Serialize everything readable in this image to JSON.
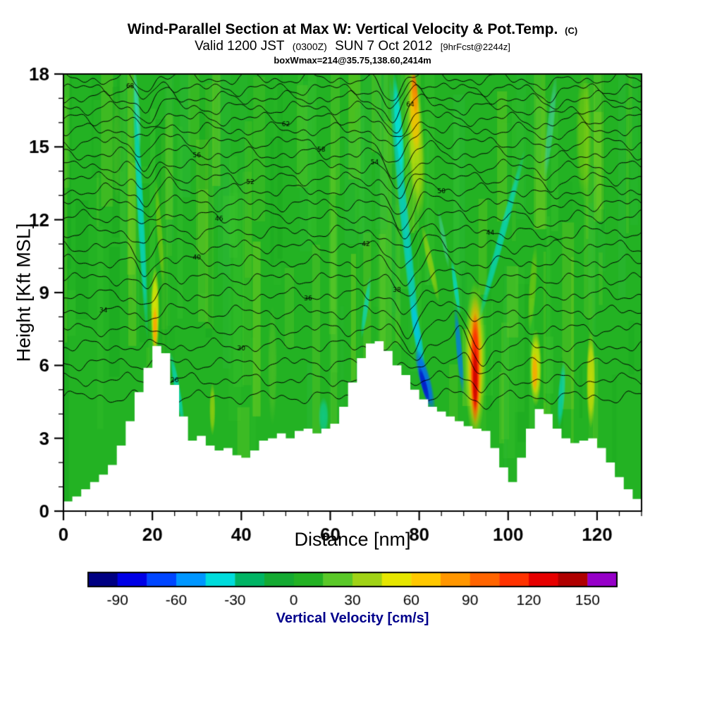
{
  "header": {
    "title_main": "Wind-Parallel Section at Max W: Vertical Velocity & Pot.Temp.",
    "title_unit": "(C)",
    "valid_line": {
      "p1": "Valid 1200 JST",
      "p2": "(0300Z)",
      "p3": "SUN 7 Oct 2012",
      "p4": "[9hrFcst@2244z]"
    },
    "info_line": "boxWmax=214@35.75,138.60,2414m"
  },
  "chart_data": {
    "type": "heatmap",
    "title": "Wind-Parallel Section at Max W: Vertical Velocity & Pot.Temp. (C)",
    "xlabel": "Distance [nm]",
    "ylabel": "Height [Kft MSL]",
    "xlim": [
      0,
      130
    ],
    "ylim": [
      0,
      18
    ],
    "xticks_major": [
      0,
      20,
      40,
      60,
      80,
      100,
      120
    ],
    "xtick_minor_step": 5,
    "yticks_major": [
      0,
      3,
      6,
      9,
      12,
      15,
      18
    ],
    "ytick_minor_step": 1,
    "field": {
      "base_color": "#23B223",
      "mottle_colors": [
        "#3DC42D",
        "#6FCE28",
        "#15A31E",
        "#2DBA3C",
        "#8CD41E"
      ],
      "features": [
        {
          "x": 17.3,
          "h": 12.5,
          "w": 1.7,
          "len": 11,
          "tilt": -3,
          "color": "#00DCDC",
          "alpha": 0.8
        },
        {
          "x": 16.6,
          "h": 16.6,
          "w": 1.2,
          "len": 3.5,
          "tilt": -4,
          "color": "#40E6E6",
          "alpha": 0.6
        },
        {
          "x": 20.6,
          "h": 8.2,
          "w": 2.0,
          "len": 3.8,
          "tilt": 0,
          "color": "#EEE800",
          "alpha": 0.9
        },
        {
          "x": 20.6,
          "h": 7.6,
          "w": 1.1,
          "len": 1.8,
          "tilt": 0,
          "color": "#FFA000",
          "alpha": 0.85
        },
        {
          "x": 21.6,
          "h": 11.5,
          "w": 1.4,
          "len": 4.5,
          "tilt": -4,
          "color": "#BEDC00",
          "alpha": 0.45
        },
        {
          "x": 25.6,
          "h": 5.0,
          "w": 1.5,
          "len": 3.2,
          "tilt": -10,
          "color": "#00DCDC",
          "alpha": 0.7
        },
        {
          "x": 33.5,
          "h": 4.2,
          "w": 1.4,
          "len": 2.2,
          "tilt": 0,
          "color": "#DCE000",
          "alpha": 0.55
        },
        {
          "x": 58.5,
          "h": 3.9,
          "w": 2.4,
          "len": 1.6,
          "tilt": 0,
          "color": "#00DCDC",
          "alpha": 0.5
        },
        {
          "x": 68.0,
          "h": 8.4,
          "w": 1.3,
          "len": 2.6,
          "tilt": 8,
          "color": "#00DCDC",
          "alpha": 0.65
        },
        {
          "x": 77.0,
          "h": 11.5,
          "w": 2.2,
          "len": 13,
          "tilt": -6,
          "color": "#00D2DC",
          "alpha": 0.8
        },
        {
          "x": 75.4,
          "h": 15.8,
          "w": 1.9,
          "len": 4.5,
          "tilt": -5,
          "color": "#00E6F0",
          "alpha": 0.85
        },
        {
          "x": 79.6,
          "h": 7.3,
          "w": 1.9,
          "len": 3.2,
          "tilt": -10,
          "color": "#00C8E6",
          "alpha": 0.85
        },
        {
          "x": 81.3,
          "h": 5.4,
          "w": 2.7,
          "len": 2.8,
          "tilt": -15,
          "color": "#0064FF",
          "alpha": 0.9
        },
        {
          "x": 81.1,
          "h": 5.2,
          "w": 1.4,
          "len": 1.7,
          "tilt": -15,
          "color": "#0014C8",
          "alpha": 0.9
        },
        {
          "x": 79.0,
          "h": 16.4,
          "w": 2.4,
          "len": 3.6,
          "tilt": -3,
          "color": "#FF8C00",
          "alpha": 0.9
        },
        {
          "x": 79.0,
          "h": 17.2,
          "w": 1.4,
          "len": 1.9,
          "tilt": -3,
          "color": "#FF3200",
          "alpha": 0.85
        },
        {
          "x": 79.3,
          "h": 15.2,
          "w": 3.8,
          "len": 6.5,
          "tilt": -3,
          "color": "#EEE800",
          "alpha": 0.6
        },
        {
          "x": 82.5,
          "h": 10.2,
          "w": 1.6,
          "len": 3.4,
          "tilt": -12,
          "color": "#DCE000",
          "alpha": 0.5
        },
        {
          "x": 92.6,
          "h": 6.2,
          "w": 4.8,
          "len": 6.6,
          "tilt": 0,
          "color": "#EEE800",
          "alpha": 0.75
        },
        {
          "x": 92.6,
          "h": 6.1,
          "w": 3.3,
          "len": 5.6,
          "tilt": 0,
          "color": "#FF9600",
          "alpha": 0.85
        },
        {
          "x": 92.6,
          "h": 5.9,
          "w": 2.1,
          "len": 4.6,
          "tilt": 0,
          "color": "#FF1E00",
          "alpha": 0.95
        },
        {
          "x": 92.6,
          "h": 5.5,
          "w": 1.2,
          "len": 2.8,
          "tilt": 0,
          "color": "#C80000",
          "alpha": 0.9
        },
        {
          "x": 89.0,
          "h": 6.6,
          "w": 1.5,
          "len": 3.8,
          "tilt": -5,
          "color": "#0078F0",
          "alpha": 0.8
        },
        {
          "x": 88.2,
          "h": 9.2,
          "w": 1.2,
          "len": 2.4,
          "tilt": -8,
          "color": "#00DCDC",
          "alpha": 0.75
        },
        {
          "x": 98.5,
          "h": 11.3,
          "w": 1.8,
          "len": 7.5,
          "tilt": 15,
          "color": "#00DCDC",
          "alpha": 0.7
        },
        {
          "x": 109.5,
          "h": 15.8,
          "w": 1.7,
          "len": 4.5,
          "tilt": 6,
          "color": "#55E0E0",
          "alpha": 0.45
        },
        {
          "x": 106.2,
          "h": 5.9,
          "w": 2.7,
          "len": 3.2,
          "tilt": 0,
          "color": "#EEE800",
          "alpha": 0.85
        },
        {
          "x": 106.0,
          "h": 5.7,
          "w": 1.4,
          "len": 1.7,
          "tilt": 0,
          "color": "#FFA000",
          "alpha": 0.8
        },
        {
          "x": 105.5,
          "h": 9.2,
          "w": 1.8,
          "len": 3.6,
          "tilt": 4,
          "color": "#BEDC00",
          "alpha": 0.4
        },
        {
          "x": 112.0,
          "h": 4.8,
          "w": 1.7,
          "len": 2.8,
          "tilt": 4,
          "color": "#00DCDC",
          "alpha": 0.65
        },
        {
          "x": 118.6,
          "h": 5.4,
          "w": 2.1,
          "len": 4.0,
          "tilt": 0,
          "color": "#E8E400",
          "alpha": 0.8
        },
        {
          "x": 117.0,
          "h": 15.5,
          "w": 3.6,
          "len": 5.5,
          "tilt": 0,
          "color": "#BEDC00",
          "alpha": 0.4
        },
        {
          "x": 85.5,
          "h": 11.2,
          "w": 1.2,
          "len": 2.5,
          "tilt": -10,
          "color": "#55DCD2",
          "alpha": 0.45
        },
        {
          "x": 75.3,
          "h": 4.9,
          "w": 1.4,
          "len": 1.6,
          "tilt": 0,
          "color": "#DCE000",
          "alpha": 0.5
        },
        {
          "x": 47.0,
          "h": 6.0,
          "w": 2.2,
          "len": 5.0,
          "tilt": 0,
          "color": "#7CCD28",
          "alpha": 0.35
        },
        {
          "x": 12.0,
          "h": 15.0,
          "w": 2.0,
          "len": 5.0,
          "tilt": 0,
          "color": "#7CCD28",
          "alpha": 0.3
        }
      ]
    },
    "terrain": {
      "x_start": 0,
      "x_step": 2,
      "heights_kft": [
        0.4,
        0.6,
        0.9,
        1.2,
        1.5,
        1.9,
        2.7,
        3.7,
        4.9,
        5.9,
        6.8,
        6.5,
        5.2,
        3.9,
        2.9,
        3.1,
        2.7,
        2.5,
        2.6,
        2.3,
        2.2,
        2.5,
        2.9,
        3.0,
        3.2,
        3.0,
        3.3,
        3.4,
        3.2,
        3.4,
        3.6,
        4.3,
        5.3,
        6.3,
        6.9,
        7.0,
        6.6,
        6.0,
        5.6,
        5.0,
        4.6,
        4.3,
        4.1,
        3.9,
        3.7,
        3.5,
        3.4,
        3.3,
        2.6,
        1.8,
        1.2,
        2.2,
        3.4,
        4.2,
        4.0,
        3.4,
        3.0,
        2.8,
        2.9,
        3.0,
        2.6,
        2.0,
        1.4,
        0.9,
        0.5,
        0.3
      ]
    },
    "isentropes": {
      "levels_c": [
        24,
        26,
        28,
        30,
        32,
        34,
        36,
        38,
        40,
        42,
        44,
        46,
        48,
        50,
        52,
        54,
        56,
        58,
        60,
        62,
        64,
        66,
        68,
        70
      ],
      "base_heights_kft": [
        4.7,
        5.4,
        6.1,
        6.8,
        7.5,
        8.2,
        8.9,
        9.6,
        10.25,
        10.9,
        11.5,
        12.1,
        12.65,
        13.2,
        13.7,
        14.2,
        14.7,
        15.2,
        15.7,
        16.15,
        16.6,
        17.0,
        17.4,
        17.8
      ],
      "labels": [
        {
          "level": 26,
          "x": 25
        },
        {
          "level": 30,
          "x": 40
        },
        {
          "level": 34,
          "x": 9
        },
        {
          "level": 36,
          "x": 55
        },
        {
          "level": 38,
          "x": 75
        },
        {
          "level": 40,
          "x": 30
        },
        {
          "level": 42,
          "x": 68
        },
        {
          "level": 44,
          "x": 96
        },
        {
          "level": 46,
          "x": 35
        },
        {
          "level": 50,
          "x": 85
        },
        {
          "level": 52,
          "x": 42
        },
        {
          "level": 54,
          "x": 70
        },
        {
          "level": 56,
          "x": 30
        },
        {
          "level": 58,
          "x": 58
        },
        {
          "level": 62,
          "x": 50
        },
        {
          "level": 64,
          "x": 78
        },
        {
          "level": 68,
          "x": 15
        }
      ]
    },
    "colorbar": {
      "label": "Vertical Velocity [cm/s]",
      "label_color": "#00008B",
      "min": -105,
      "max": 165,
      "step": 15,
      "tick_values": [
        -90,
        -60,
        -30,
        0,
        30,
        60,
        90,
        120,
        150
      ],
      "segment_colors": [
        "#000082",
        "#0000E6",
        "#0046FF",
        "#0096FF",
        "#00DCDC",
        "#00B464",
        "#14AA32",
        "#23B223",
        "#5AC828",
        "#A0D216",
        "#E6E600",
        "#FFC800",
        "#FF9600",
        "#FF6400",
        "#FF3200",
        "#E60000",
        "#AF0000",
        "#9600C8"
      ]
    }
  }
}
